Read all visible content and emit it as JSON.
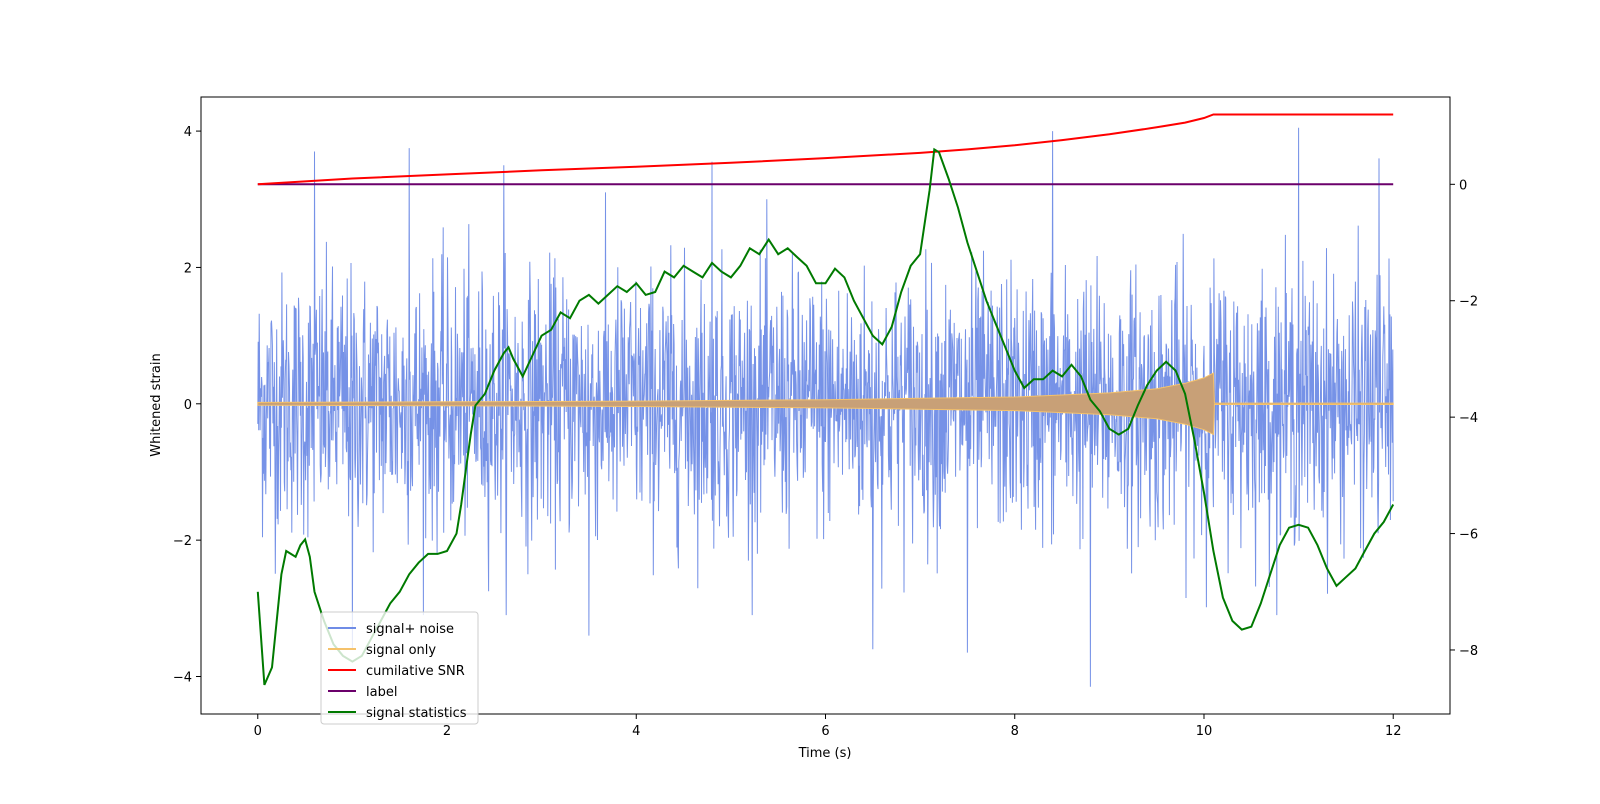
{
  "chart_data": {
    "type": "line",
    "title": "",
    "xlabel": "Time (s)",
    "ylabel": "Whitened strain",
    "y2label": "",
    "xlim": [
      -0.6,
      12.6
    ],
    "ylim": [
      -4.55,
      4.5
    ],
    "y2lim": [
      -9.1,
      1.5
    ],
    "x_ticks": [
      0,
      2,
      4,
      6,
      8,
      10,
      12
    ],
    "y_ticks": [
      -4,
      -2,
      0,
      2,
      4
    ],
    "y2_ticks": [
      -8,
      -6,
      -4,
      -2,
      0
    ],
    "legend_location": "lower-left",
    "colors": {
      "noise": "#6f8ce6",
      "signal": "#f5c26b",
      "signal_fill": "#c8a077",
      "snr": "#ff0000",
      "label": "#6b006b",
      "stat": "#007a00"
    },
    "series": [
      {
        "name": "signal+ noise",
        "axis": "left",
        "style": "dense noise, roughly gaussian, peaks between -4.1 and 4.0",
        "x_range": [
          0,
          12
        ],
        "typical_amplitude": 1.8,
        "peaks": [
          {
            "x": 0.6,
            "y": 3.7
          },
          {
            "x": 1.6,
            "y": 3.75
          },
          {
            "x": 2.6,
            "y": 3.5
          },
          {
            "x": 4.8,
            "y": 3.55
          },
          {
            "x": 8.4,
            "y": 4.0
          },
          {
            "x": 11.0,
            "y": 4.05
          },
          {
            "x": 11.85,
            "y": 3.6
          },
          {
            "x": 8.8,
            "y": -4.15
          },
          {
            "x": 7.5,
            "y": -3.65
          },
          {
            "x": 6.5,
            "y": -3.6
          },
          {
            "x": 3.5,
            "y": -3.4
          },
          {
            "x": 1.0,
            "y": -3.6
          }
        ]
      },
      {
        "name": "signal only",
        "axis": "left",
        "style": "chirp: amplitude envelope growing to merger near 10.1 s",
        "envelope": [
          {
            "x": 0,
            "y": 0.02
          },
          {
            "x": 2,
            "y": 0.03
          },
          {
            "x": 4,
            "y": 0.04
          },
          {
            "x": 6,
            "y": 0.06
          },
          {
            "x": 7,
            "y": 0.08
          },
          {
            "x": 8,
            "y": 0.1
          },
          {
            "x": 9,
            "y": 0.16
          },
          {
            "x": 9.5,
            "y": 0.22
          },
          {
            "x": 9.8,
            "y": 0.3
          },
          {
            "x": 10.0,
            "y": 0.38
          },
          {
            "x": 10.1,
            "y": 0.45
          },
          {
            "x": 10.11,
            "y": 0.01
          },
          {
            "x": 12,
            "y": 0.01
          }
        ]
      },
      {
        "name": "cumilative SNR",
        "axis": "right",
        "x": [
          0,
          1,
          2,
          3,
          4,
          5,
          6,
          7,
          7.5,
          8,
          8.5,
          9,
          9.5,
          9.8,
          10.0,
          10.1,
          10.2,
          11,
          12
        ],
        "y": [
          0.0,
          0.1,
          0.17,
          0.24,
          0.3,
          0.37,
          0.45,
          0.54,
          0.6,
          0.67,
          0.76,
          0.86,
          0.98,
          1.06,
          1.14,
          1.2,
          1.2,
          1.2,
          1.2
        ]
      },
      {
        "name": "label",
        "axis": "right",
        "x": [
          0,
          12
        ],
        "y": [
          0,
          0
        ]
      },
      {
        "name": "signal statistics",
        "axis": "right",
        "x": [
          0.0,
          0.07,
          0.15,
          0.2,
          0.25,
          0.3,
          0.35,
          0.4,
          0.45,
          0.5,
          0.55,
          0.6,
          0.7,
          0.8,
          0.9,
          1.0,
          1.1,
          1.2,
          1.3,
          1.4,
          1.5,
          1.6,
          1.7,
          1.8,
          1.9,
          2.0,
          2.1,
          2.15,
          2.2,
          2.25,
          2.3,
          2.4,
          2.5,
          2.6,
          2.65,
          2.7,
          2.8,
          2.9,
          3.0,
          3.1,
          3.2,
          3.3,
          3.4,
          3.5,
          3.6,
          3.7,
          3.8,
          3.9,
          4.0,
          4.1,
          4.2,
          4.3,
          4.4,
          4.5,
          4.6,
          4.7,
          4.8,
          4.9,
          5.0,
          5.1,
          5.2,
          5.3,
          5.4,
          5.5,
          5.6,
          5.7,
          5.8,
          5.9,
          6.0,
          6.1,
          6.2,
          6.3,
          6.4,
          6.5,
          6.6,
          6.7,
          6.8,
          6.9,
          7.0,
          7.1,
          7.15,
          7.2,
          7.3,
          7.4,
          7.5,
          7.6,
          7.7,
          7.8,
          7.9,
          8.0,
          8.1,
          8.2,
          8.3,
          8.4,
          8.5,
          8.6,
          8.7,
          8.8,
          8.9,
          9.0,
          9.1,
          9.2,
          9.3,
          9.4,
          9.5,
          9.6,
          9.7,
          9.8,
          9.9,
          10.0,
          10.1,
          10.2,
          10.3,
          10.4,
          10.5,
          10.6,
          10.7,
          10.8,
          10.9,
          11.0,
          11.1,
          11.2,
          11.3,
          11.4,
          11.5,
          11.6,
          11.7,
          11.8,
          11.9,
          12.0
        ],
        "y": [
          -7.0,
          -8.6,
          -8.3,
          -7.5,
          -6.7,
          -6.3,
          -6.35,
          -6.4,
          -6.2,
          -6.1,
          -6.4,
          -7.0,
          -7.5,
          -7.9,
          -8.1,
          -8.2,
          -8.1,
          -7.8,
          -7.5,
          -7.2,
          -7.0,
          -6.7,
          -6.5,
          -6.35,
          -6.35,
          -6.3,
          -6.0,
          -5.5,
          -4.9,
          -4.3,
          -3.8,
          -3.6,
          -3.2,
          -2.9,
          -2.8,
          -3.0,
          -3.3,
          -2.95,
          -2.6,
          -2.5,
          -2.2,
          -2.3,
          -2.0,
          -1.9,
          -2.05,
          -1.9,
          -1.75,
          -1.85,
          -1.7,
          -1.9,
          -1.85,
          -1.5,
          -1.6,
          -1.4,
          -1.5,
          -1.6,
          -1.35,
          -1.5,
          -1.6,
          -1.4,
          -1.1,
          -1.2,
          -0.95,
          -1.2,
          -1.1,
          -1.25,
          -1.4,
          -1.7,
          -1.7,
          -1.45,
          -1.6,
          -2.0,
          -2.3,
          -2.6,
          -2.75,
          -2.45,
          -1.85,
          -1.4,
          -1.2,
          -0.1,
          0.6,
          0.55,
          0.1,
          -0.4,
          -1.0,
          -1.5,
          -2.0,
          -2.4,
          -2.8,
          -3.2,
          -3.5,
          -3.35,
          -3.35,
          -3.2,
          -3.3,
          -3.1,
          -3.3,
          -3.7,
          -3.9,
          -4.2,
          -4.3,
          -4.2,
          -3.8,
          -3.45,
          -3.2,
          -3.05,
          -3.2,
          -3.6,
          -4.4,
          -5.3,
          -6.3,
          -7.1,
          -7.5,
          -7.65,
          -7.6,
          -7.2,
          -6.7,
          -6.2,
          -5.9,
          -5.85,
          -5.9,
          -6.2,
          -6.6,
          -6.9,
          -6.75,
          -6.6,
          -6.3,
          -6.0,
          -5.8,
          -5.5
        ]
      }
    ]
  }
}
